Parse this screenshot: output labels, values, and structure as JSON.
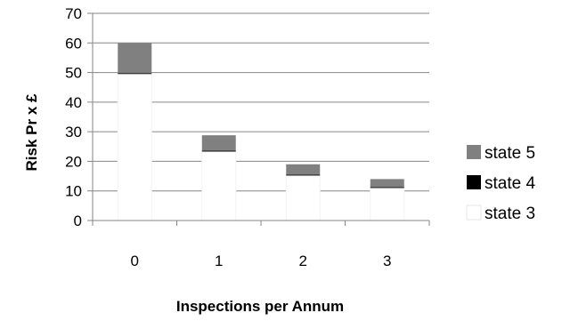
{
  "chart_data": {
    "type": "bar",
    "stacked": true,
    "categories": [
      "0",
      "1",
      "2",
      "3"
    ],
    "series": [
      {
        "name": "state 3",
        "color": "#ffffff",
        "values": [
          49.5,
          23.3,
          15.2,
          11.0
        ]
      },
      {
        "name": "state 4",
        "color": "#000000",
        "values": [
          0.3,
          0.3,
          0.3,
          0.3
        ]
      },
      {
        "name": "state 5",
        "color": "#808080",
        "values": [
          10.2,
          5.2,
          3.5,
          2.7
        ]
      }
    ],
    "xlabel": "Inspections per Annum",
    "ylabel": "Risk Pr x £",
    "ylim": [
      0,
      70
    ],
    "yticks": [
      0,
      10,
      20,
      30,
      40,
      50,
      60,
      70
    ],
    "grid": true,
    "legend_position": "right",
    "legend_order": [
      "state 5",
      "state 4",
      "state 3"
    ]
  }
}
